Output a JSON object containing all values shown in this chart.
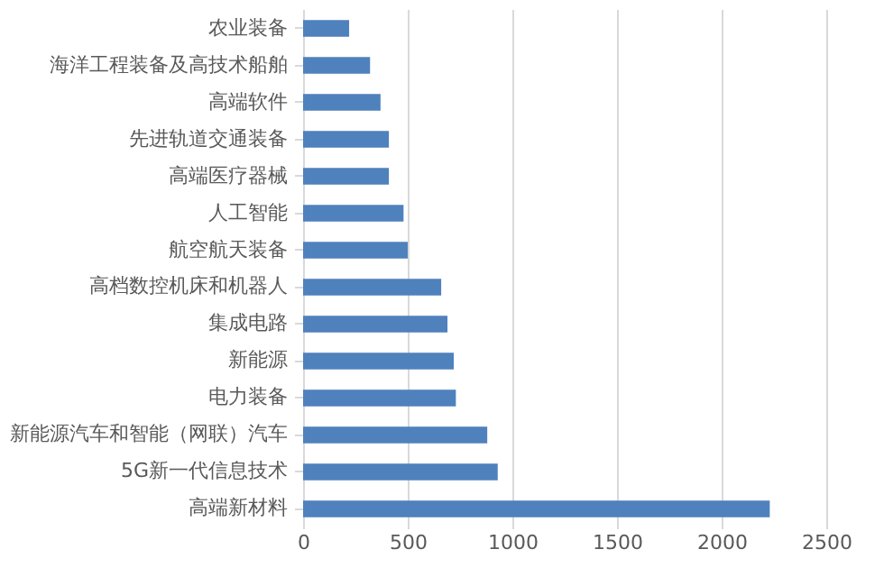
{
  "chart_data": {
    "type": "bar",
    "orientation": "horizontal",
    "categories": [
      "农业装备",
      "海洋工程装备及高技术船舶",
      "高端软件",
      "先进轨道交通装备",
      "高端医疗器械",
      "人工智能",
      "航空航天装备",
      "高档数控机床和机器人",
      "集成电路",
      "新能源",
      "电力装备",
      "新能源汽车和智能（网联）汽车",
      "5G新一代信息技术",
      "高端新材料"
    ],
    "values": [
      220,
      320,
      370,
      410,
      410,
      480,
      500,
      660,
      690,
      720,
      730,
      880,
      930,
      2230
    ],
    "color": "#4f81bd",
    "xlim": [
      0,
      2500
    ],
    "xticks": [
      0,
      500,
      1000,
      1500,
      2000,
      2500
    ],
    "grid": "x"
  }
}
